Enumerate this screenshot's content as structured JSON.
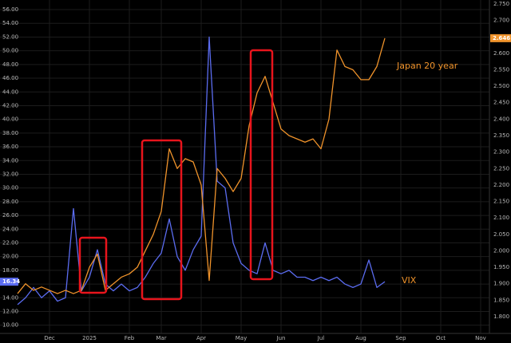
{
  "chart_data": {
    "type": "line",
    "categories": [
      null,
      null,
      null,
      null,
      "Dec",
      null,
      null,
      null,
      null,
      "2025",
      null,
      null,
      null,
      null,
      "Feb",
      null,
      null,
      null,
      "Mar",
      null,
      null,
      null,
      null,
      "Apr",
      null,
      null,
      null,
      null,
      "May",
      null,
      null,
      null,
      null,
      "Jun",
      null,
      null,
      null,
      null,
      "Jul",
      null,
      null,
      null,
      null,
      "Aug",
      null,
      null,
      null,
      null,
      "Sep",
      null,
      null,
      null,
      null,
      "Oct",
      null,
      null,
      null,
      null,
      "Nov",
      null
    ],
    "series": [
      {
        "name": "VIX",
        "color": "#5b6cf0",
        "label_color": "#f0932b",
        "values": [
          13,
          14,
          15.5,
          14,
          15,
          13.5,
          14,
          27,
          15,
          17,
          21,
          16,
          15,
          16,
          15,
          15.5,
          17,
          19,
          20.5,
          25.5,
          20,
          18,
          21,
          23,
          52,
          31,
          30,
          22,
          19,
          18,
          17.5,
          22,
          18,
          17.5,
          18,
          17,
          17,
          16.5,
          17,
          16.5,
          17,
          16,
          15.5,
          16,
          19.5,
          15.5,
          16.34,
          null,
          null,
          null,
          null,
          null,
          null,
          null,
          null,
          null,
          null,
          null,
          null,
          null
        ],
        "value_labels": [
          null,
          null,
          null,
          null,
          null,
          null,
          null,
          null,
          null,
          null,
          null,
          null,
          null,
          null,
          null,
          null,
          null,
          null,
          null,
          null,
          null,
          null,
          null,
          null,
          null,
          null,
          null,
          null,
          null,
          null,
          null,
          null,
          null,
          null,
          null,
          null,
          null,
          null,
          null,
          null,
          null,
          null,
          null,
          null,
          null,
          null,
          "16.34",
          null,
          null,
          null,
          null,
          null,
          null,
          null,
          null,
          null,
          null,
          null,
          null,
          null
        ]
      },
      {
        "name": "Japan 20 year",
        "color": "#f0932b",
        "label_color": "#f0932b",
        "axis": "y2",
        "values": [
          1.87,
          1.9,
          1.88,
          1.89,
          1.88,
          1.87,
          1.88,
          1.87,
          1.88,
          1.95,
          1.99,
          1.88,
          1.9,
          1.92,
          1.93,
          1.95,
          2,
          2.05,
          2.12,
          2.31,
          2.25,
          2.28,
          2.27,
          2.2,
          1.91,
          2.25,
          2.22,
          2.18,
          2.22,
          2.38,
          2.48,
          2.53,
          2.45,
          2.37,
          2.35,
          2.34,
          2.33,
          2.34,
          2.31,
          2.4,
          2.61,
          2.56,
          2.55,
          2.52,
          2.52,
          2.56,
          2.646,
          null,
          null,
          null,
          null,
          null,
          null,
          null,
          null,
          null,
          null,
          null,
          null,
          null
        ],
        "value_labels": [
          null,
          null,
          null,
          null,
          null,
          null,
          null,
          null,
          null,
          null,
          null,
          null,
          null,
          null,
          null,
          null,
          null,
          null,
          null,
          null,
          null,
          null,
          null,
          null,
          null,
          null,
          null,
          null,
          null,
          null,
          null,
          null,
          null,
          null,
          null,
          null,
          null,
          null,
          null,
          null,
          null,
          null,
          null,
          null,
          null,
          null,
          "2.646",
          null,
          null,
          null,
          null,
          null,
          null,
          null,
          null,
          null,
          null,
          null,
          null,
          null
        ]
      }
    ],
    "ylim": [
      8.8,
      57.4
    ],
    "yticks": [
      {
        "value": 10,
        "label": "10.00"
      },
      {
        "value": 12,
        "label": "12.00"
      },
      {
        "value": 14,
        "label": "14.00"
      },
      {
        "value": 16,
        "label": "16.00"
      },
      {
        "value": 18,
        "label": "18.00"
      },
      {
        "value": 20,
        "label": "20.00"
      },
      {
        "value": 22,
        "label": "22.00"
      },
      {
        "value": 24,
        "label": "24.00"
      },
      {
        "value": 26,
        "label": "26.00"
      },
      {
        "value": 28,
        "label": "28.00"
      },
      {
        "value": 30,
        "label": "30.00"
      },
      {
        "value": 32,
        "label": "32.00"
      },
      {
        "value": 34,
        "label": "34.00"
      },
      {
        "value": 36,
        "label": "36.00"
      },
      {
        "value": 38,
        "label": "38.00"
      },
      {
        "value": 40,
        "label": "40.00"
      },
      {
        "value": 42,
        "label": "42.00"
      },
      {
        "value": 44,
        "label": "44.00"
      },
      {
        "value": 46,
        "label": "46.00"
      },
      {
        "value": 48,
        "label": "48.00"
      },
      {
        "value": 50,
        "label": "50.00"
      },
      {
        "value": 52,
        "label": "52.00"
      },
      {
        "value": 54,
        "label": "54.00"
      },
      {
        "value": 56,
        "label": "56.00"
      }
    ],
    "y2lim": [
      1.749,
      2.762
    ],
    "y2ticks": [
      {
        "value": 1.8,
        "label": "1.800"
      },
      {
        "value": 1.85,
        "label": "1.850"
      },
      {
        "value": 1.9,
        "label": "1.900"
      },
      {
        "value": 1.95,
        "label": "1.950"
      },
      {
        "value": 2,
        "label": "2.000"
      },
      {
        "value": 2.05,
        "label": "2.050"
      },
      {
        "value": 2.1,
        "label": "2.100"
      },
      {
        "value": 2.15,
        "label": "2.150"
      },
      {
        "value": 2.2,
        "label": "2.200"
      },
      {
        "value": 2.25,
        "label": "2.250"
      },
      {
        "value": 2.3,
        "label": "2.300"
      },
      {
        "value": 2.35,
        "label": "2.350"
      },
      {
        "value": 2.4,
        "label": "2.400"
      },
      {
        "value": 2.45,
        "label": "2.450"
      },
      {
        "value": 2.5,
        "label": "2.500"
      },
      {
        "value": 2.55,
        "label": "2.550"
      },
      {
        "value": 2.6,
        "label": "2.600"
      },
      {
        "value": 2.65,
        "label": "2.650"
      },
      {
        "value": 2.7,
        "label": "2.700"
      },
      {
        "value": 2.75,
        "label": "2.750"
      }
    ],
    "grid": true
  }
}
